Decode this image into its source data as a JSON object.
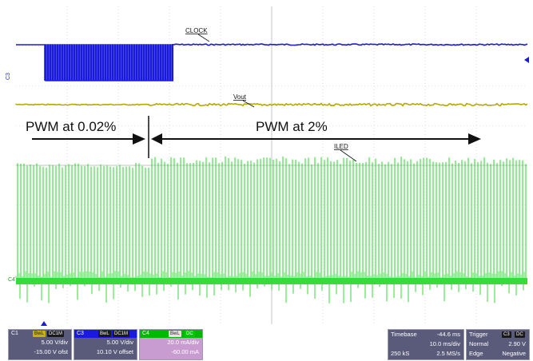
{
  "colors": {
    "c1": "#b5a800",
    "c3": "#1a1adc",
    "c4": "#22d822",
    "grid": "#c9c9c9",
    "arrow": "#111111"
  },
  "labels": {
    "clock": "CLOCK",
    "vout": "Vout",
    "iled": "ILED",
    "pwm_low": "PWM at 0.02%",
    "pwm_high": "PWM at 2%",
    "c3_marker": "C3",
    "c4_marker": "C4"
  },
  "channels": [
    {
      "name": "C1",
      "tags": [
        "BwL",
        "DC1M"
      ],
      "scale": "5.00 V/div",
      "offset": "-15.00 V ofst"
    },
    {
      "name": "C3",
      "tags": [
        "BwL",
        "DC1M"
      ],
      "scale": "5.00 V/div",
      "offset": "10.10 V offset"
    },
    {
      "name": "C4",
      "tags": [
        "BwL",
        "DC"
      ],
      "scale": "20.0 mA/div",
      "offset": "-60.00 mA"
    }
  ],
  "timebase": {
    "label": "Timebase",
    "position": "-44.6 ms",
    "scale": "10.0 ms/div",
    "samples": "250 kS",
    "rate": "2.5 MS/s"
  },
  "trigger": {
    "label": "Trigger",
    "channel": "C3",
    "coupling": "DC",
    "mode": "Normal",
    "level": "2.90 V",
    "type": "Edge",
    "slope": "Negative"
  }
}
